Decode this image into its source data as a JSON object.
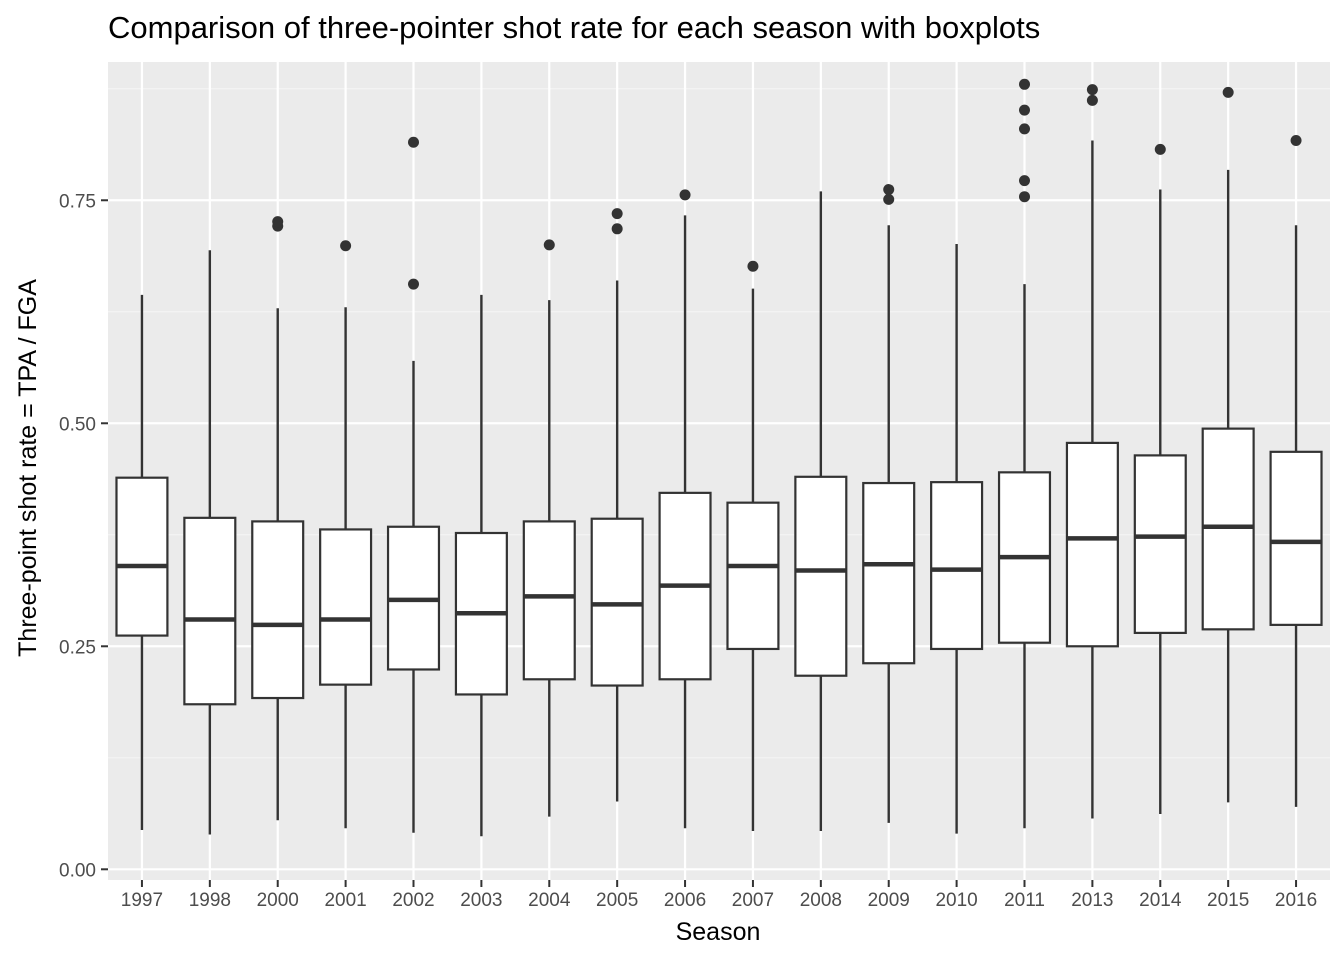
{
  "chart_data": {
    "type": "boxplot",
    "title": "Comparison of three-pointer shot rate for each season with boxplots",
    "xlabel": "Season",
    "ylabel": "Three-point shot rate = TPA / FGA",
    "ylim": [
      -0.012,
      0.905
    ],
    "y_ticks": [
      0.0,
      0.25,
      0.5,
      0.75
    ],
    "y_tick_labels": [
      "0.00",
      "0.25",
      "0.50",
      "0.75"
    ],
    "grid": true,
    "categories": [
      "1997",
      "1998",
      "2000",
      "2001",
      "2002",
      "2003",
      "2004",
      "2005",
      "2006",
      "2007",
      "2008",
      "2009",
      "2010",
      "2011",
      "2013",
      "2014",
      "2015",
      "2016"
    ],
    "boxes": [
      {
        "season": "1997",
        "whisker_low": 0.044,
        "q1": 0.262,
        "median": 0.34,
        "q3": 0.439,
        "whisker_high": 0.644,
        "outliers": []
      },
      {
        "season": "1998",
        "whisker_low": 0.039,
        "q1": 0.185,
        "median": 0.28,
        "q3": 0.394,
        "whisker_high": 0.694,
        "outliers": []
      },
      {
        "season": "2000",
        "whisker_low": 0.055,
        "q1": 0.192,
        "median": 0.274,
        "q3": 0.39,
        "whisker_high": 0.629,
        "outliers": [
          0.721,
          0.726
        ]
      },
      {
        "season": "2001",
        "whisker_low": 0.046,
        "q1": 0.207,
        "median": 0.28,
        "q3": 0.381,
        "whisker_high": 0.63,
        "outliers": [
          0.699
        ]
      },
      {
        "season": "2002",
        "whisker_low": 0.041,
        "q1": 0.224,
        "median": 0.302,
        "q3": 0.384,
        "whisker_high": 0.57,
        "outliers": [
          0.656,
          0.815
        ]
      },
      {
        "season": "2003",
        "whisker_low": 0.037,
        "q1": 0.196,
        "median": 0.287,
        "q3": 0.377,
        "whisker_high": 0.644,
        "outliers": []
      },
      {
        "season": "2004",
        "whisker_low": 0.059,
        "q1": 0.213,
        "median": 0.306,
        "q3": 0.39,
        "whisker_high": 0.638,
        "outliers": [
          0.7
        ]
      },
      {
        "season": "2005",
        "whisker_low": 0.076,
        "q1": 0.206,
        "median": 0.297,
        "q3": 0.393,
        "whisker_high": 0.66,
        "outliers": [
          0.718,
          0.735
        ]
      },
      {
        "season": "2006",
        "whisker_low": 0.046,
        "q1": 0.213,
        "median": 0.318,
        "q3": 0.422,
        "whisker_high": 0.733,
        "outliers": [
          0.756
        ]
      },
      {
        "season": "2007",
        "whisker_low": 0.043,
        "q1": 0.247,
        "median": 0.34,
        "q3": 0.411,
        "whisker_high": 0.651,
        "outliers": [
          0.676
        ]
      },
      {
        "season": "2008",
        "whisker_low": 0.043,
        "q1": 0.217,
        "median": 0.335,
        "q3": 0.44,
        "whisker_high": 0.76,
        "outliers": []
      },
      {
        "season": "2009",
        "whisker_low": 0.052,
        "q1": 0.231,
        "median": 0.342,
        "q3": 0.433,
        "whisker_high": 0.722,
        "outliers": [
          0.751,
          0.762
        ]
      },
      {
        "season": "2010",
        "whisker_low": 0.04,
        "q1": 0.247,
        "median": 0.336,
        "q3": 0.434,
        "whisker_high": 0.701,
        "outliers": []
      },
      {
        "season": "2011",
        "whisker_low": 0.046,
        "q1": 0.254,
        "median": 0.35,
        "q3": 0.445,
        "whisker_high": 0.656,
        "outliers": [
          0.754,
          0.772,
          0.83,
          0.851,
          0.88
        ]
      },
      {
        "season": "2013",
        "whisker_low": 0.057,
        "q1": 0.25,
        "median": 0.371,
        "q3": 0.478,
        "whisker_high": 0.817,
        "outliers": [
          0.862,
          0.874
        ]
      },
      {
        "season": "2014",
        "whisker_low": 0.062,
        "q1": 0.265,
        "median": 0.373,
        "q3": 0.464,
        "whisker_high": 0.762,
        "outliers": [
          0.807
        ]
      },
      {
        "season": "2015",
        "whisker_low": 0.075,
        "q1": 0.269,
        "median": 0.384,
        "q3": 0.494,
        "whisker_high": 0.784,
        "outliers": [
          0.871
        ]
      },
      {
        "season": "2016",
        "whisker_low": 0.07,
        "q1": 0.274,
        "median": 0.367,
        "q3": 0.468,
        "whisker_high": 0.722,
        "outliers": [
          0.817
        ]
      }
    ],
    "colors": {
      "panel_background": "#ebebeb",
      "grid_major": "#ffffff",
      "grid_minor": "#f4f4f4",
      "box_fill": "#ffffff",
      "box_stroke": "#333333",
      "outlier": "#333333",
      "axis_text": "#4d4d4d",
      "tick": "#333333"
    }
  }
}
